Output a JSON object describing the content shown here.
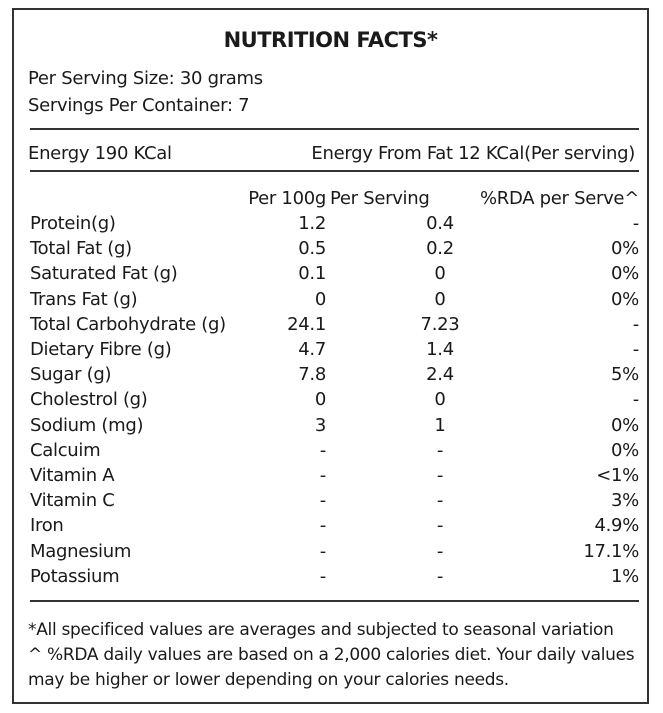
{
  "title": "NUTRITION FACTS*",
  "serving_size": "Per Serving Size: 30 grams",
  "servings_per_container": "Servings Per Container: 7",
  "energy": "Energy 190 KCal",
  "energy_from_fat": "Energy From Fat 12 KCal(Per serving)",
  "headers": [
    "Per 100g",
    "Per Serving",
    "%RDA per Serve^"
  ],
  "rows": [
    {
      "name": "Protein(g)",
      "per100g": "1.2",
      "serving": "0.4",
      "rda": "-"
    },
    {
      "name": "Total Fat (g)",
      "per100g": "0.5",
      "serving": "0.2",
      "rda": "0%"
    },
    {
      "name": "Saturated Fat (g)",
      "per100g": "0.1",
      "serving": "0",
      "rda": "0%"
    },
    {
      "name": "Trans Fat (g)",
      "per100g": "0",
      "serving": "0",
      "rda": "0%"
    },
    {
      "name": "Total Carbohydrate (g)",
      "per100g": "24.1",
      "serving": "7.23",
      "rda": "-"
    },
    {
      "name": "Dietary Fibre (g)",
      "per100g": "4.7",
      "serving": "1.4",
      "rda": "-"
    },
    {
      "name": "Sugar (g)",
      "per100g": "7.8",
      "serving": "2.4",
      "rda": "5%"
    },
    {
      "name": "Cholestrol (g)",
      "per100g": "0",
      "serving": "0",
      "rda": "-"
    },
    {
      "name": "Sodium (mg)",
      "per100g": "3",
      "serving": "1",
      "rda": "0%"
    },
    {
      "name": "Calcuim",
      "per100g": "-",
      "serving": "-",
      "rda": "0%"
    },
    {
      "name": "Vitamin A",
      "per100g": "-",
      "serving": "-",
      "rda": "<1%"
    },
    {
      "name": "Vitamin C",
      "per100g": "-",
      "serving": "-",
      "rda": "3%"
    },
    {
      "name": "Iron",
      "per100g": "-",
      "serving": "-",
      "rda": "4.9%"
    },
    {
      "name": "Magnesium",
      "per100g": "-",
      "serving": "-",
      "rda": "17.1%"
    },
    {
      "name": "Potassium",
      "per100g": "-",
      "serving": "-",
      "rda": "1%"
    }
  ],
  "footnotes": [
    "*All specificed values are averages and subjected to seasonal variation",
    "^ %RDA daily values are based on a 2,000 calories diet. Your daily values may be higher or lower depending on your calories needs."
  ]
}
